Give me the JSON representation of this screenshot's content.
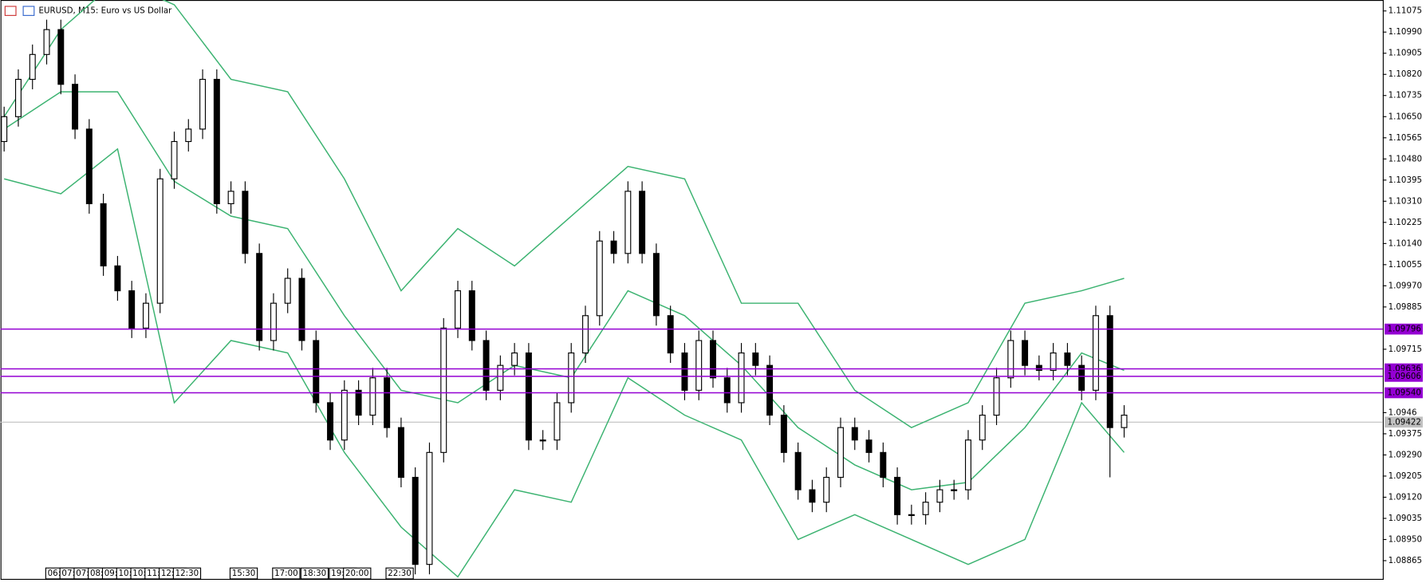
{
  "chart_data": {
    "type": "candlestick",
    "title": "EURUSD, M15:  Euro vs US Dollar",
    "categories": [
      null,
      null,
      null,
      "06:00",
      "07:00",
      "07:30",
      "08:00",
      "09:00",
      "10:00",
      "10:30",
      "11:00",
      "12:00",
      "12:30",
      null,
      null,
      null,
      "15:30",
      null,
      null,
      "17:00",
      null,
      "18:30",
      null,
      "19:00",
      "20:00",
      null,
      null,
      "22:30",
      null,
      null,
      null,
      null,
      null,
      null,
      null,
      null,
      null,
      null,
      null,
      null,
      null,
      null,
      null,
      null,
      null,
      null,
      null,
      null,
      null,
      null,
      null,
      null,
      null,
      null,
      null,
      null,
      null,
      null,
      null,
      null,
      null,
      null,
      null,
      null,
      null,
      null,
      null,
      null,
      null,
      null,
      null,
      null,
      null,
      null,
      null,
      null,
      null,
      null,
      null,
      null
    ],
    "open": [
      1.1055,
      1.1065,
      1.108,
      1.109,
      1.11,
      1.1078,
      1.106,
      1.103,
      1.1005,
      1.0995,
      1.098,
      1.099,
      1.104,
      1.1055,
      1.106,
      1.108,
      1.103,
      1.1035,
      1.101,
      1.0975,
      1.099,
      1.1,
      1.0975,
      1.095,
      1.0935,
      1.0955,
      1.0945,
      1.096,
      1.094,
      1.092,
      1.0885,
      1.093,
      1.098,
      1.0995,
      1.0975,
      1.0955,
      1.0965,
      1.097,
      1.0935,
      1.0935,
      1.095,
      1.097,
      1.0985,
      1.1015,
      1.101,
      1.1035,
      1.101,
      1.0985,
      1.097,
      1.0955,
      1.0975,
      1.096,
      1.095,
      1.097,
      1.0965,
      1.0945,
      1.093,
      1.0915,
      1.091,
      1.092,
      1.094,
      1.0935,
      1.093,
      1.092,
      1.0905,
      1.0905,
      1.091,
      1.0915,
      1.0915,
      1.0935,
      1.0945,
      1.096,
      1.0975,
      1.0965,
      1.0963,
      1.097,
      1.0965,
      1.0955,
      1.0985,
      1.094
    ],
    "high": [
      1.1069,
      1.1084,
      1.1094,
      1.1104,
      1.1104,
      1.1082,
      1.1064,
      1.1034,
      1.1009,
      1.0999,
      1.0994,
      1.1044,
      1.1059,
      1.1064,
      1.1084,
      1.1084,
      1.1039,
      1.1039,
      1.1014,
      1.0994,
      1.1004,
      1.1004,
      1.0979,
      1.0954,
      1.0959,
      1.0959,
      1.0964,
      1.0964,
      1.0944,
      1.0924,
      1.0934,
      1.0984,
      1.0999,
      1.0999,
      1.0979,
      1.0969,
      1.0974,
      1.0974,
      1.0939,
      1.0954,
      1.0974,
      1.0989,
      1.1019,
      1.1019,
      1.1039,
      1.1039,
      1.1014,
      1.0989,
      1.0974,
      1.0979,
      1.0979,
      1.0964,
      1.0974,
      1.0974,
      1.0969,
      1.0949,
      1.0934,
      1.0919,
      1.0924,
      1.0944,
      1.0944,
      1.0939,
      1.0934,
      1.0924,
      1.0909,
      1.0914,
      1.0919,
      1.0919,
      1.0939,
      1.0949,
      1.0964,
      1.0979,
      1.0979,
      1.0969,
      1.0974,
      1.0974,
      1.0969,
      1.0989,
      1.0989,
      1.0949
    ],
    "low": [
      1.1051,
      1.1061,
      1.1076,
      1.1086,
      1.1074,
      1.1056,
      1.1026,
      1.1001,
      1.0991,
      1.0976,
      1.0976,
      1.0986,
      1.1036,
      1.1051,
      1.1056,
      1.1026,
      1.1026,
      1.1006,
      1.0971,
      1.0971,
      1.0986,
      1.0971,
      1.0946,
      1.0931,
      1.0931,
      1.0941,
      1.0941,
      1.0936,
      1.0916,
      1.0881,
      1.0881,
      1.0926,
      1.0976,
      1.0971,
      1.0951,
      1.0951,
      1.0961,
      1.0931,
      1.0931,
      1.0931,
      1.0946,
      1.0966,
      1.0981,
      1.1006,
      1.1006,
      1.1006,
      1.0981,
      1.0966,
      1.0951,
      1.0951,
      1.0956,
      1.0946,
      1.0946,
      1.0961,
      1.0941,
      1.0926,
      1.0911,
      1.0906,
      1.0906,
      1.0916,
      1.0931,
      1.0926,
      1.0916,
      1.0901,
      1.0901,
      1.0901,
      1.0906,
      1.0911,
      1.0911,
      1.0931,
      1.0941,
      1.0956,
      1.0961,
      1.0959,
      1.0959,
      1.0961,
      1.0951,
      1.0951,
      1.092,
      1.0936
    ],
    "close": [
      1.1065,
      1.108,
      1.109,
      1.11,
      1.1078,
      1.106,
      1.103,
      1.1005,
      1.0995,
      1.098,
      1.099,
      1.104,
      1.1055,
      1.106,
      1.108,
      1.103,
      1.1035,
      1.101,
      1.0975,
      1.099,
      1.1,
      1.0975,
      1.095,
      1.0935,
      1.0955,
      1.0945,
      1.096,
      1.094,
      1.092,
      1.0885,
      1.093,
      1.098,
      1.0995,
      1.0975,
      1.0955,
      1.0965,
      1.097,
      1.0935,
      1.0935,
      1.095,
      1.097,
      1.0985,
      1.1015,
      1.101,
      1.1035,
      1.101,
      1.0985,
      1.097,
      1.0955,
      1.0975,
      1.096,
      1.095,
      1.097,
      1.0965,
      1.0945,
      1.093,
      1.0915,
      1.091,
      1.092,
      1.094,
      1.0935,
      1.093,
      1.092,
      1.0905,
      1.0905,
      1.091,
      1.0915,
      1.0915,
      1.0935,
      1.0945,
      1.096,
      1.0975,
      1.0965,
      1.0963,
      1.097,
      1.0965,
      1.0955,
      1.0985,
      1.094,
      1.0945
    ],
    "up_color": "#ffffff",
    "down_color": "#000000",
    "bands": {
      "x": [
        0,
        4,
        8,
        12,
        16,
        20,
        24,
        28,
        32,
        36,
        40,
        44,
        48,
        52,
        56,
        60,
        64,
        68,
        72,
        76,
        79
      ],
      "color": "#3cb371",
      "series": [
        {
          "values": [
            1.1065,
            1.11,
            1.112,
            1.111,
            1.108,
            1.1075,
            1.104,
            1.0995,
            1.102,
            1.1005,
            1.1025,
            1.1045,
            1.104,
            1.099,
            1.099,
            1.0955,
            1.094,
            1.095,
            1.099,
            1.0995,
            1.1
          ]
        },
        {
          "values": [
            1.106,
            1.1075,
            1.1075,
            1.1039,
            1.1025,
            1.102,
            1.0985,
            1.0955,
            1.095,
            1.0965,
            1.096,
            1.0995,
            1.0985,
            1.0965,
            1.094,
            1.0925,
            1.0915,
            1.0918,
            1.094,
            1.097,
            1.0963
          ]
        },
        {
          "values": [
            1.104,
            1.1034,
            1.1052,
            1.095,
            1.0975,
            1.097,
            1.093,
            1.09,
            1.088,
            1.0915,
            1.091,
            1.096,
            1.0945,
            1.0935,
            1.0895,
            1.0905,
            1.0895,
            1.0885,
            1.0895,
            1.095,
            1.093
          ]
        }
      ]
    },
    "levels": [
      1.09796,
      1.09636,
      1.09606,
      {
        "value": 1.0954,
        "label": "1.09540"
      }
    ],
    "level_color": "#9400d3",
    "current_price": 1.09422,
    "ylim": [
      1.08788,
      1.11119
    ],
    "yticks": [
      1.11075,
      {
        "value": 1.1099,
        "label": "1.10990"
      },
      1.10905,
      {
        "value": 1.1082,
        "label": "1.10820"
      },
      1.10735,
      {
        "value": 1.1065,
        "label": "1.10650"
      },
      1.10565,
      {
        "value": 1.1048,
        "label": "1.10480"
      },
      1.10395,
      {
        "value": 1.1031,
        "label": "1.10310"
      },
      1.10225,
      {
        "value": 1.1014,
        "label": "1.10140"
      },
      1.10055,
      {
        "value": 1.0997,
        "label": "1.09970"
      },
      1.09885,
      1.09715,
      1.0946,
      1.09375,
      {
        "value": 1.0929,
        "label": "1.09290"
      },
      1.09205,
      {
        "value": 1.0912,
        "label": "1.09120"
      },
      1.09035,
      {
        "value": 1.0895,
        "label": "1.08950"
      },
      1.08865
    ]
  }
}
